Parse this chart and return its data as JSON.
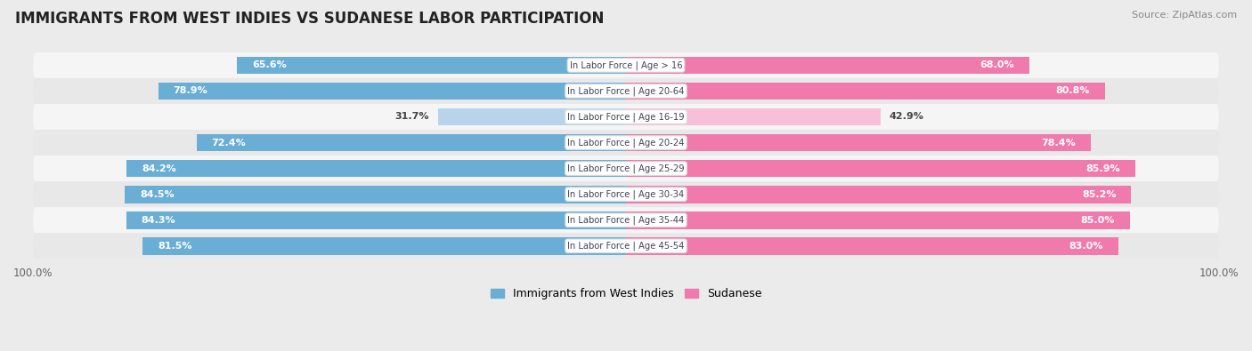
{
  "title": "IMMIGRANTS FROM WEST INDIES VS SUDANESE LABOR PARTICIPATION",
  "source": "Source: ZipAtlas.com",
  "categories": [
    "In Labor Force | Age > 16",
    "In Labor Force | Age 20-64",
    "In Labor Force | Age 16-19",
    "In Labor Force | Age 20-24",
    "In Labor Force | Age 25-29",
    "In Labor Force | Age 30-34",
    "In Labor Force | Age 35-44",
    "In Labor Force | Age 45-54"
  ],
  "west_indies_values": [
    65.6,
    78.9,
    31.7,
    72.4,
    84.2,
    84.5,
    84.3,
    81.5
  ],
  "sudanese_values": [
    68.0,
    80.8,
    42.9,
    78.4,
    85.9,
    85.2,
    85.0,
    83.0
  ],
  "west_indies_color": "#6aaed6",
  "west_indies_color_light": "#b8d4ea",
  "sudanese_color": "#f07aab",
  "sudanese_color_light": "#f8c0d8",
  "background_color": "#ebebeb",
  "row_bg_even": "#f5f5f5",
  "row_bg_odd": "#e8e8e8",
  "max_value": 100.0,
  "title_fontsize": 12,
  "west_indies_label": "Immigrants from West Indies",
  "sudanese_label": "Sudanese"
}
